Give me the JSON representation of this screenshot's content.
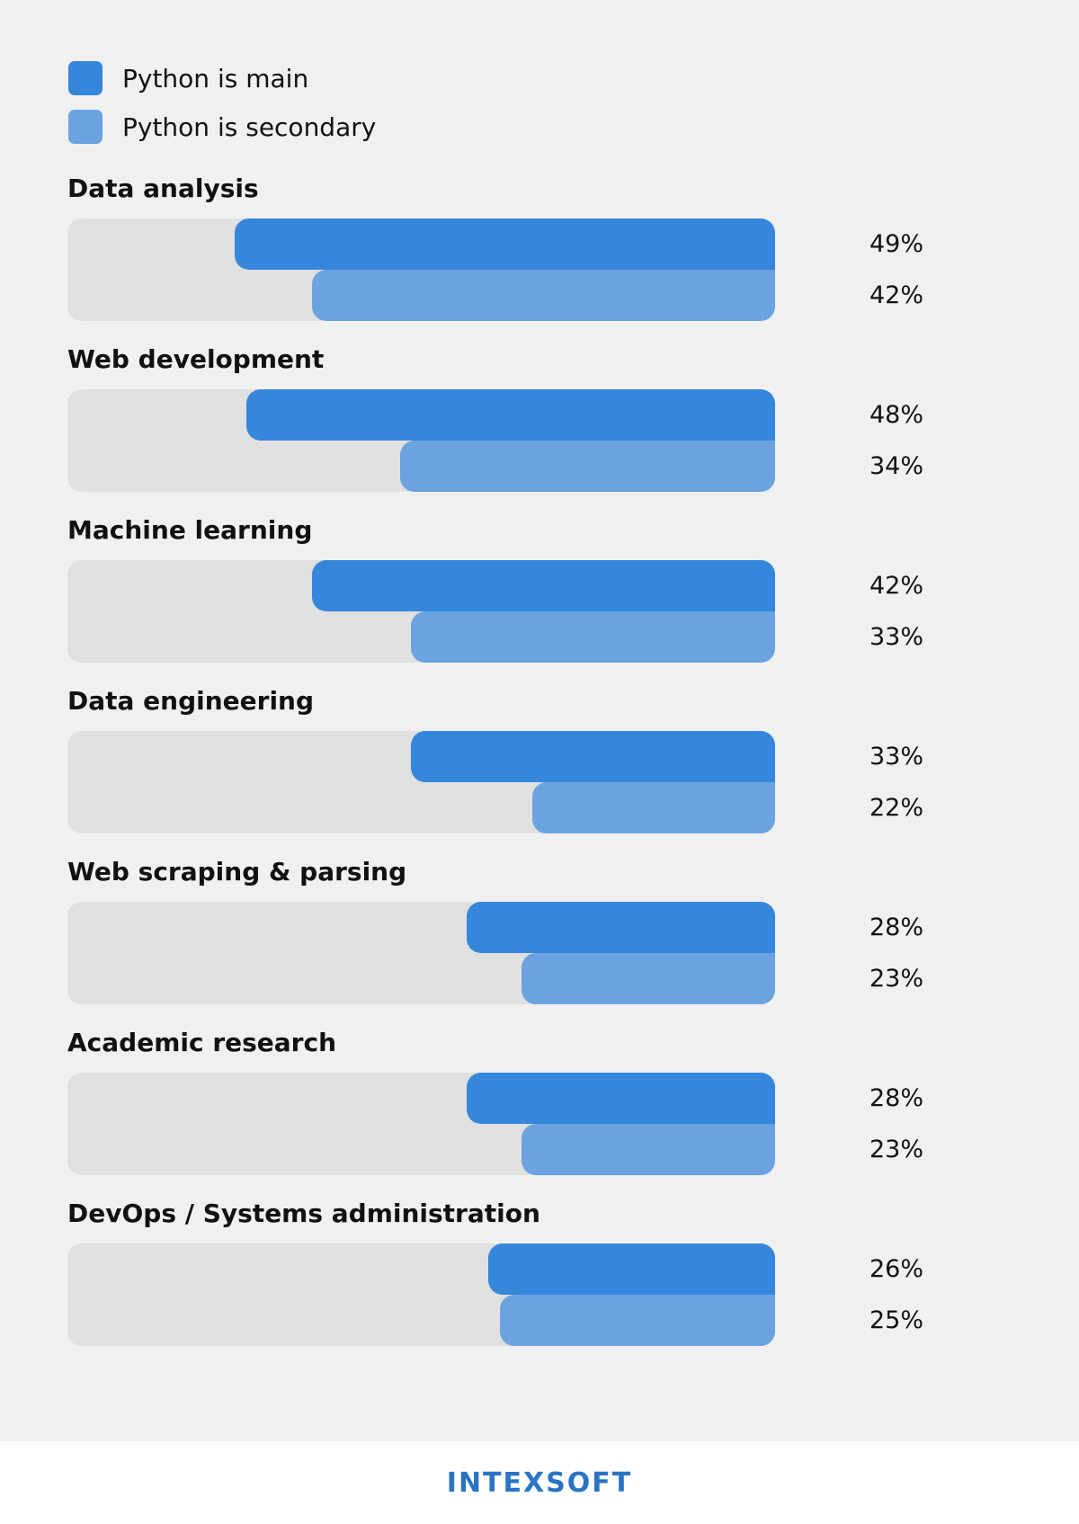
{
  "colors": {
    "main": "#3587db",
    "secondary": "#6aa3e0",
    "track": "#e0e0e0",
    "logo": "#2b74c4"
  },
  "legend": [
    {
      "label": "Python is main",
      "color": "#3587db"
    },
    {
      "label": "Python is secondary",
      "color": "#6aa3e0"
    }
  ],
  "chart_data": {
    "type": "bar",
    "orientation": "horizontal",
    "categories": [
      "Data analysis",
      "Web development",
      "Machine learning",
      "Data engineering",
      "Web scraping & parsing",
      "Academic research",
      "DevOps / Systems administration"
    ],
    "series": [
      {
        "name": "Python is main",
        "values": [
          49,
          48,
          42,
          33,
          28,
          28,
          26
        ]
      },
      {
        "name": "Python is secondary",
        "values": [
          42,
          34,
          33,
          22,
          23,
          23,
          25
        ]
      }
    ],
    "value_labels": {
      "main": [
        "49%",
        "48%",
        "42%",
        "33%",
        "28%",
        "28%",
        "26%"
      ],
      "secondary": [
        "42%",
        "34%",
        "33%",
        "22%",
        "23%",
        "23%",
        "25%"
      ]
    },
    "unit": "%",
    "xlim": [
      0,
      100
    ],
    "legend_position": "top-left",
    "grid": false
  },
  "footer": {
    "logo_text": "INTEXSOFT"
  }
}
